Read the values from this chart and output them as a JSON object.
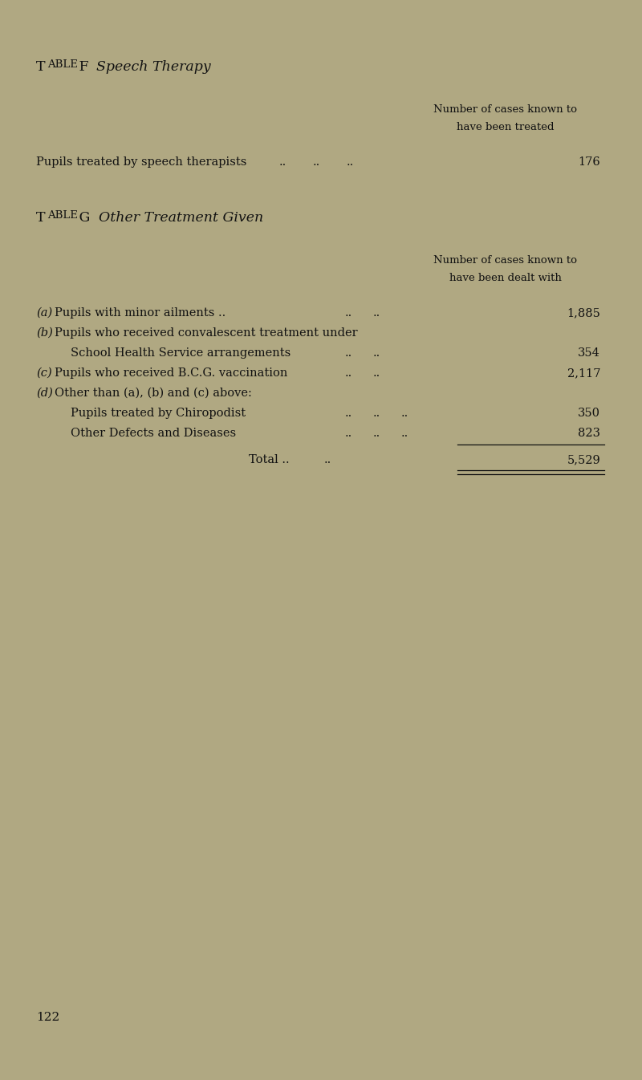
{
  "bg_color": "#b0a882",
  "text_color": "#111111",
  "page_width": 8.0,
  "page_height": 13.46,
  "dpi": 100,
  "table_f_label_T": "T",
  "table_f_label_rest": "ABLE",
  "table_f_label_F": " F",
  "table_f_title": "  Speech Therapy",
  "table_f_col_header_line1": "Number of cases known to",
  "table_f_col_header_line2": "have been treated",
  "table_f_row_label": "Pupils treated by speech therapists",
  "table_f_value": "176",
  "table_g_label_T": "T",
  "table_g_label_rest": "ABLE",
  "table_g_label_G": " G",
  "table_g_title": "  Other Treatment Given",
  "table_g_col_header_line1": "Number of cases known to",
  "table_g_col_header_line2": "have been dealt with",
  "rows": [
    {
      "letter": "(a)",
      "text": "Pupils with minor ailments ..",
      "dots": "..  ..",
      "value": "1,885",
      "indent": 0
    },
    {
      "letter": "(b)",
      "text": "Pupils who received convalescent treatment under",
      "dots": "",
      "value": "",
      "indent": 0
    },
    {
      "letter": "",
      "text": "School Health Service arrangements",
      "dots": "..  ..",
      "value": "354",
      "indent": 1
    },
    {
      "letter": "(c)",
      "text": "Pupils who received B.C.G. vaccination",
      "dots": "..  ..",
      "value": "2,117",
      "indent": 0
    },
    {
      "letter": "(d)",
      "text": "Other than (a), (b) and (c) above:",
      "dots": "",
      "value": "",
      "indent": 0
    },
    {
      "letter": "",
      "text": "Pupils treated by Chiropodist",
      "dots": "..  ..  ..",
      "value": "350",
      "indent": 1
    },
    {
      "letter": "",
      "text": "Other Defects and Diseases",
      "dots": "..  ..  ..",
      "value": "823",
      "indent": 1
    }
  ],
  "total_label": "Total ..",
  "total_dots": "..",
  "total_value": "5,529",
  "page_number": "122"
}
